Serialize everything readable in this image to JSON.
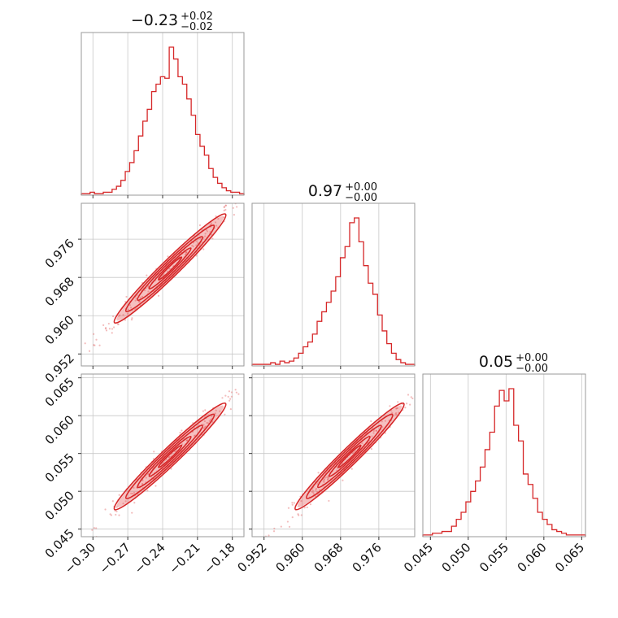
{
  "chart_data": {
    "type": "corner",
    "color": "#d62728",
    "parameters": [
      {
        "title_value": "0.23",
        "title_sign": "−",
        "title_plus": "+0.02",
        "title_minus": "−0.02",
        "range": [
          -0.31,
          -0.17
        ],
        "ticks": [
          -0.3,
          -0.27,
          -0.24,
          -0.21,
          -0.18
        ],
        "tick_labels": [
          "−0.30",
          "−0.27",
          "−0.24",
          "−0.21",
          "−0.18"
        ],
        "hist_counts": [
          1,
          1,
          2,
          1,
          1,
          2,
          2,
          4,
          6,
          10,
          16,
          22,
          30,
          40,
          50,
          58,
          70,
          75,
          80,
          79,
          100,
          92,
          80,
          75,
          65,
          54,
          41,
          33,
          27,
          18,
          12,
          8,
          5,
          3,
          2,
          2,
          1
        ]
      },
      {
        "title_value": "0.97",
        "title_sign": "",
        "title_plus": "+0.00",
        "title_minus": "−0.00",
        "range": [
          0.9495,
          0.9835
        ],
        "ticks": [
          0.952,
          0.96,
          0.968,
          0.976
        ],
        "tick_labels": [
          "0.952",
          "0.960",
          "0.968",
          "0.976"
        ],
        "hist_counts": [
          1,
          1,
          1,
          1,
          2,
          1,
          3,
          2,
          3,
          5,
          8,
          12,
          15,
          20,
          28,
          34,
          40,
          47,
          56,
          68,
          75,
          90,
          93,
          78,
          63,
          52,
          45,
          32,
          22,
          14,
          8,
          4,
          2,
          1,
          1
        ]
      },
      {
        "title_value": "0.05",
        "title_sign": "",
        "title_plus": "+0.00",
        "title_minus": "−0.00",
        "range": [
          0.044,
          0.0655
        ],
        "ticks": [
          0.045,
          0.05,
          0.055,
          0.06,
          0.065
        ],
        "tick_labels": [
          "0.045",
          "0.050",
          "0.055",
          "0.060",
          "0.065"
        ],
        "hist_counts": [
          1,
          1,
          2,
          2,
          3,
          3,
          6,
          10,
          14,
          20,
          26,
          32,
          40,
          50,
          60,
          75,
          84,
          78,
          85,
          64,
          55,
          36,
          30,
          22,
          14,
          10,
          7,
          4,
          3,
          2,
          1,
          1,
          1,
          1
        ]
      }
    ],
    "y_axes": {
      "row1": {
        "ticks": [
          0.952,
          0.96,
          0.968,
          0.976
        ],
        "tick_labels": [
          "0.952",
          "0.960",
          "0.968",
          "0.976"
        ]
      },
      "row2": {
        "ticks": [
          0.045,
          0.05,
          0.055,
          0.06,
          0.065
        ],
        "tick_labels": [
          "0.045",
          "0.050",
          "0.055",
          "0.060",
          "0.065"
        ]
      }
    },
    "grid": true,
    "legend": "none"
  }
}
